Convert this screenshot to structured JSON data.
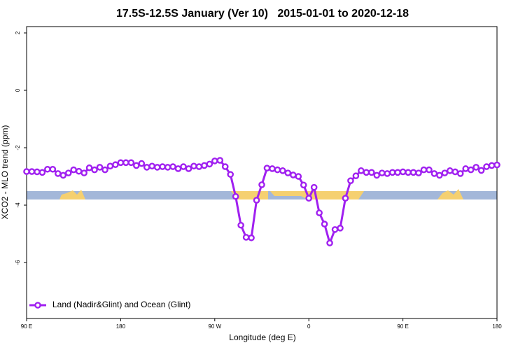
{
  "chart_data": {
    "type": "line",
    "title": "17.5S-12.5S January (Ver 10)   2015-01-01 to 2020-12-18",
    "x_label": "Longitude (deg E)",
    "y_label": "XCO2 - MLO trend (ppm)",
    "x": [
      90,
      95,
      100,
      105,
      110,
      115,
      120,
      125,
      130,
      135,
      140,
      145,
      150,
      155,
      160,
      165,
      170,
      175,
      180,
      185,
      190,
      195,
      200,
      205,
      210,
      215,
      220,
      225,
      230,
      235,
      240,
      245,
      250,
      255,
      260,
      265,
      270,
      275,
      280,
      285,
      290,
      295,
      300,
      305,
      310,
      315,
      320,
      325,
      330,
      335,
      340,
      345,
      350,
      355,
      360,
      365,
      370,
      375,
      380,
      385,
      390,
      395,
      400,
      405,
      410,
      415,
      420,
      425,
      430,
      435,
      440,
      445,
      450,
      455,
      460,
      465,
      470,
      475,
      480,
      485,
      490,
      495,
      500,
      505,
      510,
      515,
      520,
      525,
      530,
      535,
      540
    ],
    "series": [
      {
        "name": "Land (Nadir&Glint) and Ocean (Glint)",
        "color": "#a020f0",
        "values": [
          -2.83,
          -2.83,
          -2.84,
          -2.86,
          -2.75,
          -2.75,
          -2.9,
          -2.96,
          -2.88,
          -2.77,
          -2.82,
          -2.88,
          -2.7,
          -2.77,
          -2.68,
          -2.77,
          -2.64,
          -2.59,
          -2.52,
          -2.52,
          -2.52,
          -2.62,
          -2.55,
          -2.68,
          -2.64,
          -2.68,
          -2.66,
          -2.68,
          -2.66,
          -2.73,
          -2.66,
          -2.73,
          -2.64,
          -2.66,
          -2.62,
          -2.57,
          -2.46,
          -2.44,
          -2.66,
          -2.93,
          -3.7,
          -4.7,
          -5.12,
          -5.14,
          -3.83,
          -3.29,
          -2.71,
          -2.73,
          -2.77,
          -2.8,
          -2.88,
          -2.95,
          -3.0,
          -3.3,
          -3.76,
          -3.38,
          -4.27,
          -4.66,
          -5.32,
          -4.85,
          -4.8,
          -3.76,
          -3.15,
          -2.98,
          -2.8,
          -2.86,
          -2.86,
          -2.96,
          -2.88,
          -2.9,
          -2.86,
          -2.86,
          -2.84,
          -2.86,
          -2.86,
          -2.88,
          -2.77,
          -2.77,
          -2.9,
          -2.96,
          -2.88,
          -2.8,
          -2.84,
          -2.9,
          -2.73,
          -2.77,
          -2.68,
          -2.79,
          -2.66,
          -2.62,
          -2.6
        ]
      }
    ],
    "xlim": [
      90,
      540
    ],
    "xticks": [
      {
        "value": 90,
        "label": "90 E"
      },
      180,
      {
        "value": 270,
        "label": "90 W"
      },
      {
        "value": 360,
        "label": "0"
      },
      {
        "value": 450,
        "label": "90 E"
      },
      {
        "value": 540,
        "label": "180"
      }
    ],
    "ylim": [
      -7.95,
      2.22
    ],
    "yticks": [
      2,
      0,
      -2,
      -4,
      -6
    ],
    "grid": false,
    "legend": "bottom-left"
  }
}
